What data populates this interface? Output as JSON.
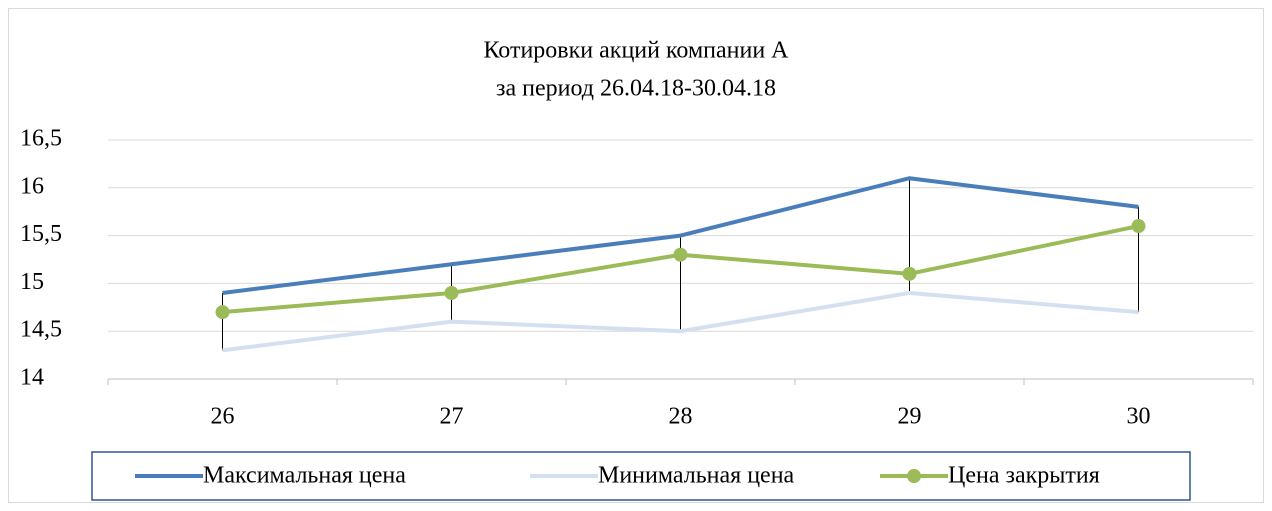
{
  "chart_data": {
    "type": "line",
    "title": "Котировки акций компании А",
    "subtitle": "за период 26.04.18-30.04.18",
    "categories": [
      "26",
      "27",
      "28",
      "29",
      "30"
    ],
    "series": [
      {
        "name": "Максимальная цена",
        "color": "#4a7ebb",
        "values": [
          14.9,
          15.2,
          15.5,
          16.1,
          15.8
        ]
      },
      {
        "name": "Минимальная цена",
        "color": "#d4e0ef",
        "values": [
          14.3,
          14.6,
          14.5,
          14.9,
          14.7
        ]
      },
      {
        "name": "Цена закрытия",
        "color": "#9bbb59",
        "values": [
          14.7,
          14.9,
          15.3,
          15.1,
          15.6
        ],
        "markers": true
      }
    ],
    "high_low_lines": true,
    "ylim": [
      14,
      16.5
    ],
    "yticks": [
      14,
      {
        "value": 14.5,
        "label": "14,5"
      },
      15,
      {
        "value": 15.5,
        "label": "15,5"
      },
      16,
      {
        "value": 16.5,
        "label": "16,5"
      }
    ],
    "grid": true,
    "legend": "bottom"
  }
}
